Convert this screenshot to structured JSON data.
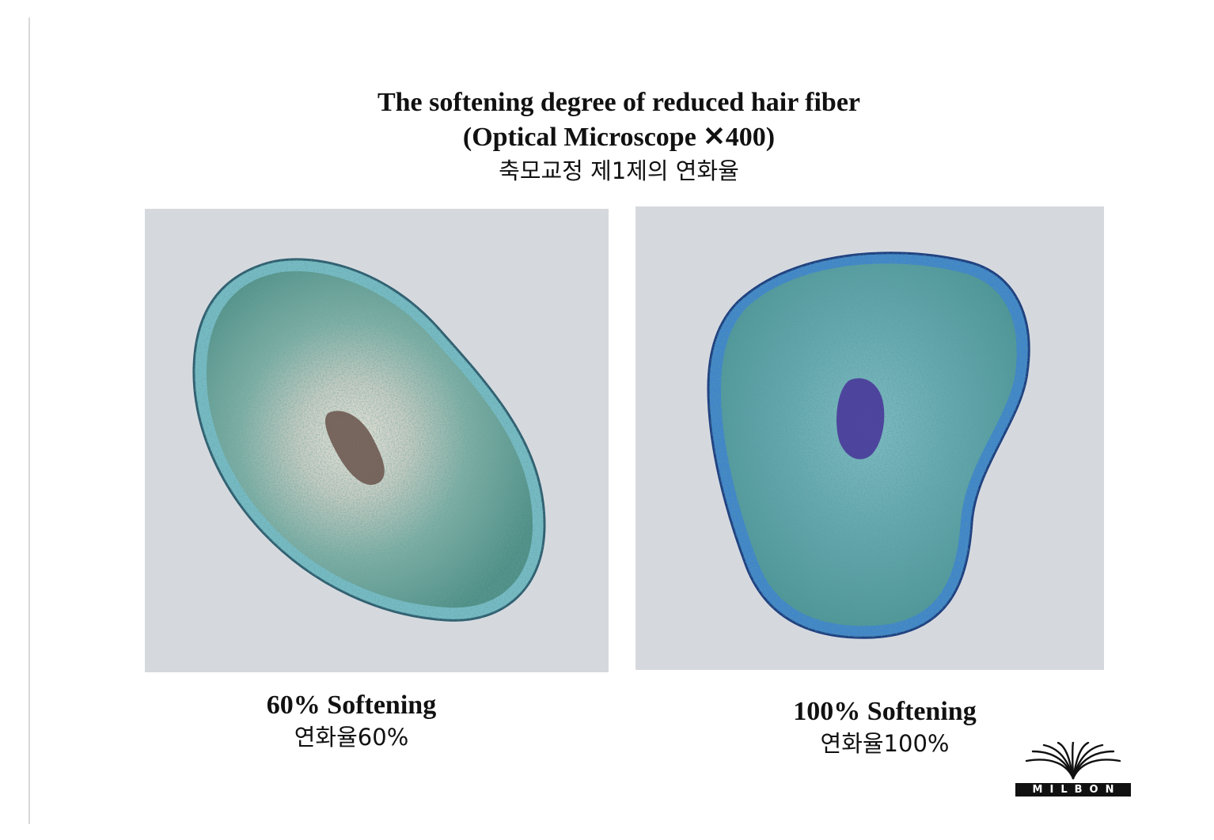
{
  "header": {
    "title": "The softening degree of reduced hair fiber",
    "subtitle": "(Optical Microscope ✕400)",
    "title_ko": "축모교정 제1제의 연화율"
  },
  "panels": [
    {
      "caption_en": "60% Softening",
      "caption_ko": "연화율60%",
      "softening_percent": 60,
      "cortex_color": "#5f9e96",
      "cuticle_color": "#6db8c4",
      "medulla_color": "#6e5a52"
    },
    {
      "caption_en": "100% Softening",
      "caption_ko": "연화율100%",
      "softening_percent": 100,
      "cortex_color": "#5aa3a6",
      "cuticle_color": "#3f86cc",
      "medulla_color": "#4a3c9a"
    }
  ],
  "logo": {
    "wordmark": "MILBON",
    "icon": "fan-logo-icon"
  },
  "colors": {
    "background": "#ffffff",
    "micrograph_background": "#d5d9de",
    "text": "#111111"
  }
}
